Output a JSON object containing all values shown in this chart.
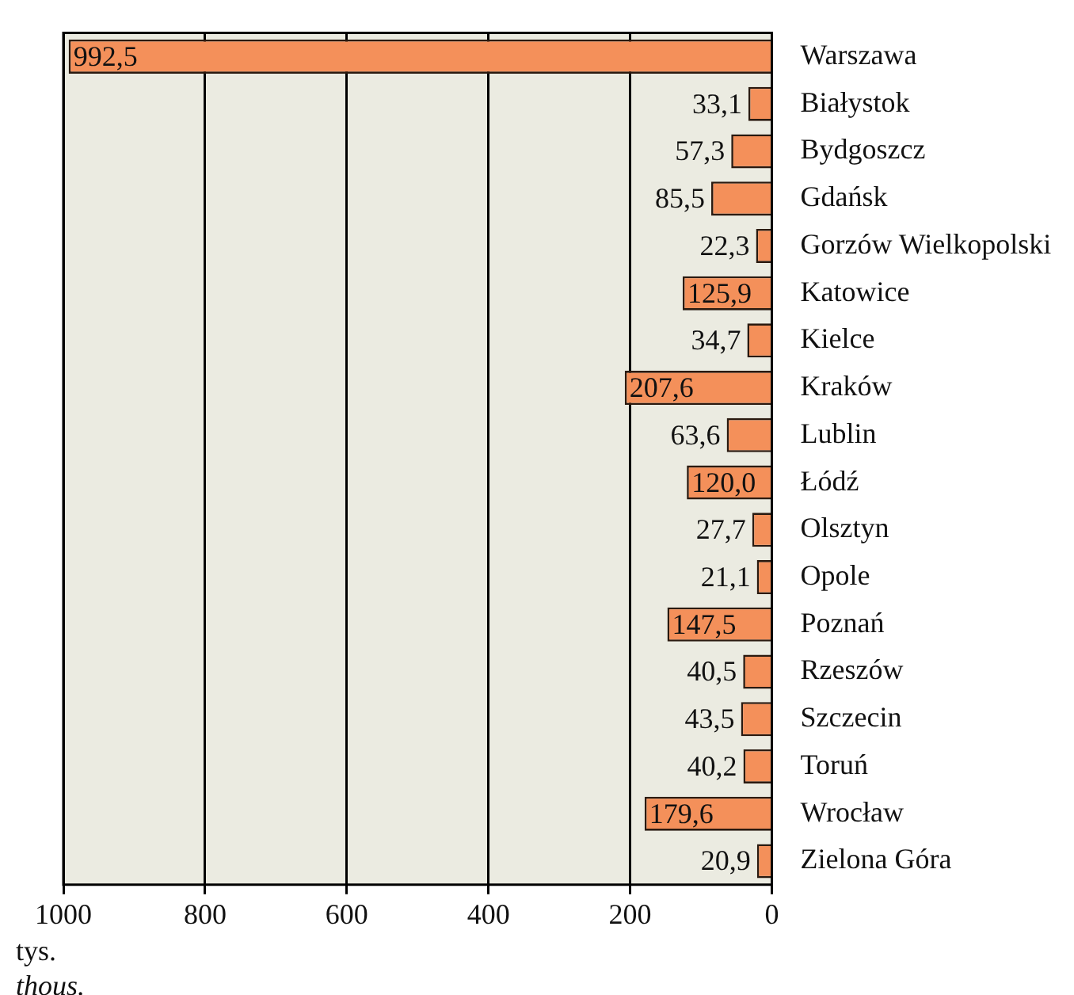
{
  "chart_data": {
    "type": "bar",
    "orientation": "horizontal",
    "categories": [
      "Warszawa",
      "Białystok",
      "Bydgoszcz",
      "Gdańsk",
      "Gorzów Wielkopolski",
      "Katowice",
      "Kielce",
      "Kraków",
      "Lublin",
      "Łódź",
      "Olsztyn",
      "Opole",
      "Poznań",
      "Rzeszów",
      "Szczecin",
      "Toruń",
      "Wrocław",
      "Zielona Góra"
    ],
    "values": [
      992.5,
      33.1,
      57.3,
      85.5,
      22.3,
      125.9,
      34.7,
      207.6,
      63.6,
      120.0,
      27.7,
      21.1,
      147.5,
      40.5,
      43.5,
      40.2,
      179.6,
      20.9
    ],
    "value_labels": [
      "992,5",
      "33,1",
      "57,3",
      "85,5",
      "22,3",
      "125,9",
      "34,7",
      "207,6",
      "63,6",
      "120,0",
      "27,7",
      "21,1",
      "147,5",
      "40,5",
      "43,5",
      "40,2",
      "179,6",
      "20,9"
    ],
    "color": "#f4905a",
    "xlim": [
      1000,
      0
    ],
    "xticks": [
      1000,
      800,
      600,
      400,
      200,
      0
    ],
    "grid": "x",
    "legend": false,
    "annotations": [
      "tys.",
      "thous."
    ]
  }
}
